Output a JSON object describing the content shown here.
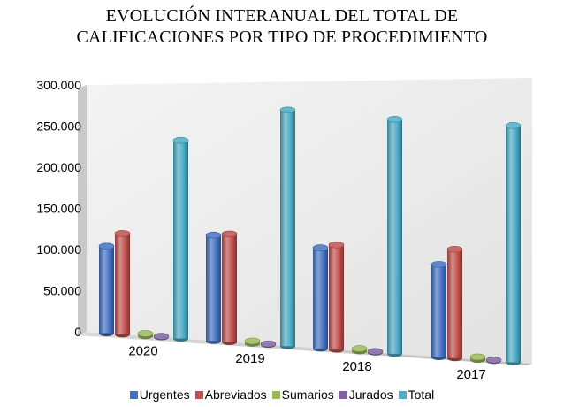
{
  "chart_data": {
    "type": "bar",
    "title_lines": [
      "EVOLUCIÓN INTERANUAL DEL TOTAL DE",
      "CALIFICACIONES POR TIPO DE PROCEDIMIENTO"
    ],
    "categories": [
      "2020",
      "2019",
      "2018",
      "2017"
    ],
    "series": [
      {
        "name": "Urgentes",
        "color": "#4472C4",
        "values": [
          105000,
          123000,
          113000,
          100000
        ]
      },
      {
        "name": "Abreviados",
        "color": "#C0504D",
        "values": [
          121000,
          125000,
          117000,
          117000
        ]
      },
      {
        "name": "Sumarios",
        "color": "#9BBB59",
        "values": [
          3000,
          3000,
          3000,
          3000
        ]
      },
      {
        "name": "Jurados",
        "color": "#8064A2",
        "values": [
          1000,
          1000,
          1000,
          1000
        ]
      },
      {
        "name": "Total",
        "color": "#4BACC6",
        "values": [
          233000,
          268000,
          257000,
          250000
        ]
      }
    ],
    "y_ticks": [
      "0",
      "50.000",
      "100.000",
      "150.000",
      "200.000",
      "250.000",
      "300.000"
    ],
    "ylim": [
      0,
      300000
    ],
    "grid": false,
    "legend_position": "bottom",
    "style": "3d-cylinder"
  }
}
